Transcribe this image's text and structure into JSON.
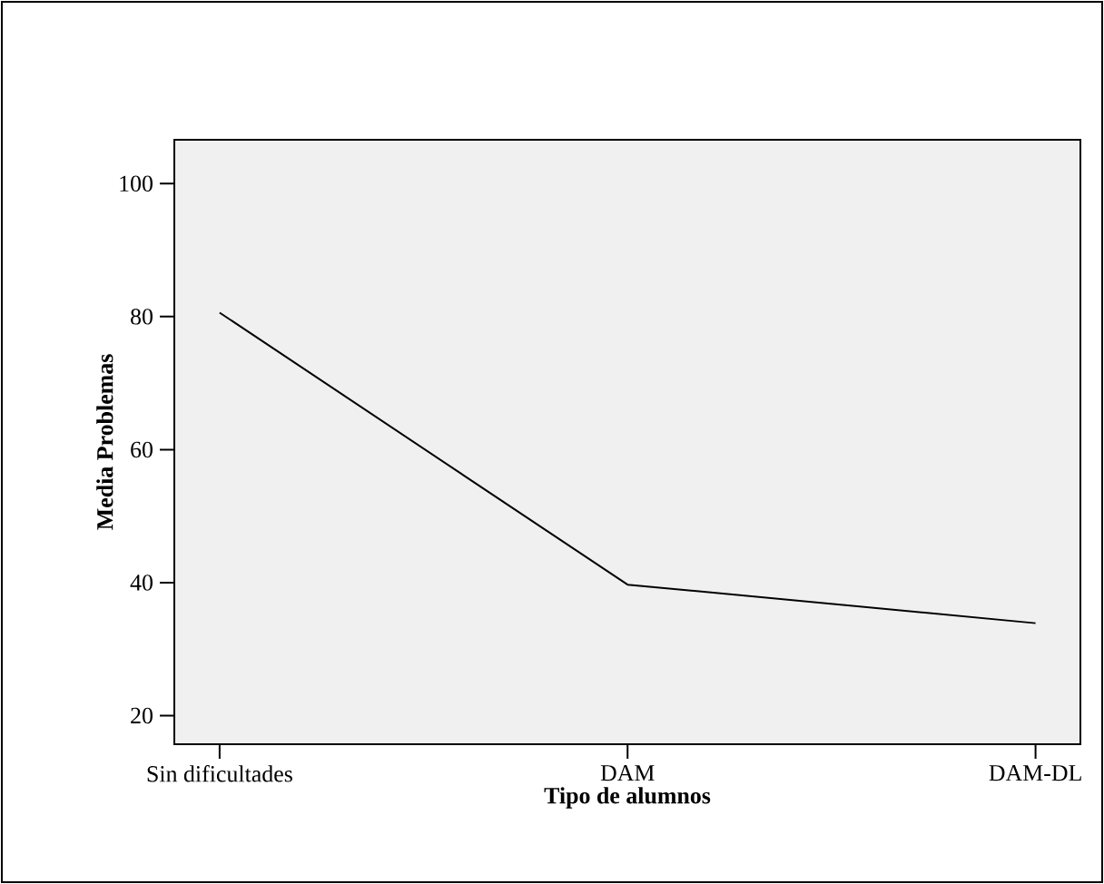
{
  "chart_data": {
    "type": "line",
    "xlabel": "Tipo de alumnos",
    "ylabel": "Media Problemas",
    "categories": [
      "Sin dificultades",
      "DAM",
      "DAM-DL"
    ],
    "series": [
      {
        "color": "#000000",
        "values": [
          80.6,
          39.7,
          33.9
        ]
      }
    ],
    "ylim": [
      15.7,
      106.6
    ],
    "yticks": [
      20,
      40,
      60,
      80,
      100
    ],
    "grid": false,
    "legend": false,
    "marker": "none",
    "line_style": "solid"
  }
}
